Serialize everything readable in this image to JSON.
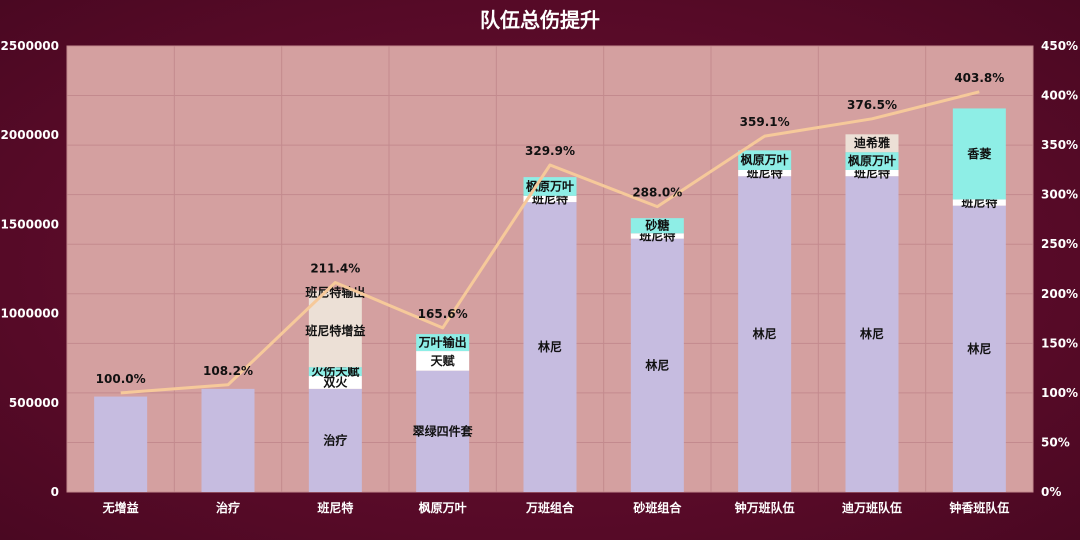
{
  "chart_data": {
    "type": "bar",
    "title": "队伍总伤提升",
    "categories": [
      "无增益",
      "治疗",
      "班尼特",
      "枫原万叶",
      "万班组合",
      "砂班组合",
      "钟万班队伍",
      "迪万班队伍",
      "钟香班队伍"
    ],
    "ylim": [
      0,
      2500000
    ],
    "yticks": [
      "0",
      "500000",
      "1000000",
      "1500000",
      "2000000",
      "2500000"
    ],
    "y2lim": [
      0,
      450
    ],
    "y2ticks": [
      "0%",
      "50%",
      "100%",
      "150%",
      "200%",
      "250%",
      "300%",
      "350%",
      "400%",
      "450%"
    ],
    "grid": true,
    "stacks": [
      [
        {
          "label": "",
          "value": 535000,
          "color": "#c6bce0"
        }
      ],
      [
        {
          "label": "",
          "value": 578000,
          "color": "#c6bce0"
        }
      ],
      [
        {
          "label": "治疗",
          "value": 578000,
          "color": "#c6bce0"
        },
        {
          "label": "双火",
          "value": 72000,
          "color": "#ffffff"
        },
        {
          "label": "火伤天赋",
          "value": 50000,
          "color": "#8eeee6"
        },
        {
          "label": "班尼特增益",
          "value": 405000,
          "color": "#ece0d6"
        },
        {
          "label": "班尼特输出",
          "value": 25000,
          "color": "#ece0d6"
        }
      ],
      [
        {
          "label": "翠绿四件套",
          "value": 680000,
          "color": "#c6bce0"
        },
        {
          "label": "天赋",
          "value": 110000,
          "color": "#ffffff"
        },
        {
          "label": "万叶输出",
          "value": 95000,
          "color": "#8eeee6"
        }
      ],
      [
        {
          "label": "林尼",
          "value": 1625000,
          "color": "#c6bce0"
        },
        {
          "label": "班尼特",
          "value": 35000,
          "color": "#ffffff"
        },
        {
          "label": "枫原万叶",
          "value": 105000,
          "color": "#8eeee6"
        }
      ],
      [
        {
          "label": "林尼",
          "value": 1420000,
          "color": "#c6bce0"
        },
        {
          "label": "班尼特",
          "value": 30000,
          "color": "#ffffff"
        },
        {
          "label": "砂糖",
          "value": 85000,
          "color": "#8eeee6"
        }
      ],
      [
        {
          "label": "林尼",
          "value": 1770000,
          "color": "#c6bce0"
        },
        {
          "label": "班尼特",
          "value": 35000,
          "color": "#ffffff"
        },
        {
          "label": "枫原万叶",
          "value": 110000,
          "color": "#8eeee6"
        }
      ],
      [
        {
          "label": "林尼",
          "value": 1770000,
          "color": "#c6bce0"
        },
        {
          "label": "班尼特",
          "value": 35000,
          "color": "#ffffff"
        },
        {
          "label": "枫原万叶",
          "value": 100000,
          "color": "#8eeee6"
        },
        {
          "label": "迪希雅",
          "value": 100000,
          "color": "#ece0d6"
        }
      ],
      [
        {
          "label": "林尼",
          "value": 1605000,
          "color": "#c6bce0"
        },
        {
          "label": "班尼特",
          "value": 35000,
          "color": "#ffffff"
        },
        {
          "label": "香菱",
          "value": 510000,
          "color": "#8eeee6"
        }
      ]
    ],
    "line": {
      "values": [
        100.0,
        108.2,
        211.4,
        165.6,
        329.9,
        288.0,
        359.1,
        376.5,
        403.8
      ],
      "labels": [
        "100.0%",
        "108.2%",
        "211.4%",
        "165.6%",
        "329.9%",
        "288.0%",
        "359.1%",
        "376.5%",
        "403.8%"
      ],
      "color": "#f6c99a"
    },
    "colors": {
      "plot_background": "#d4a0a0",
      "page_background": "#5e0d2c",
      "grid": "#c38a8e",
      "text": "#ffffff"
    }
  }
}
